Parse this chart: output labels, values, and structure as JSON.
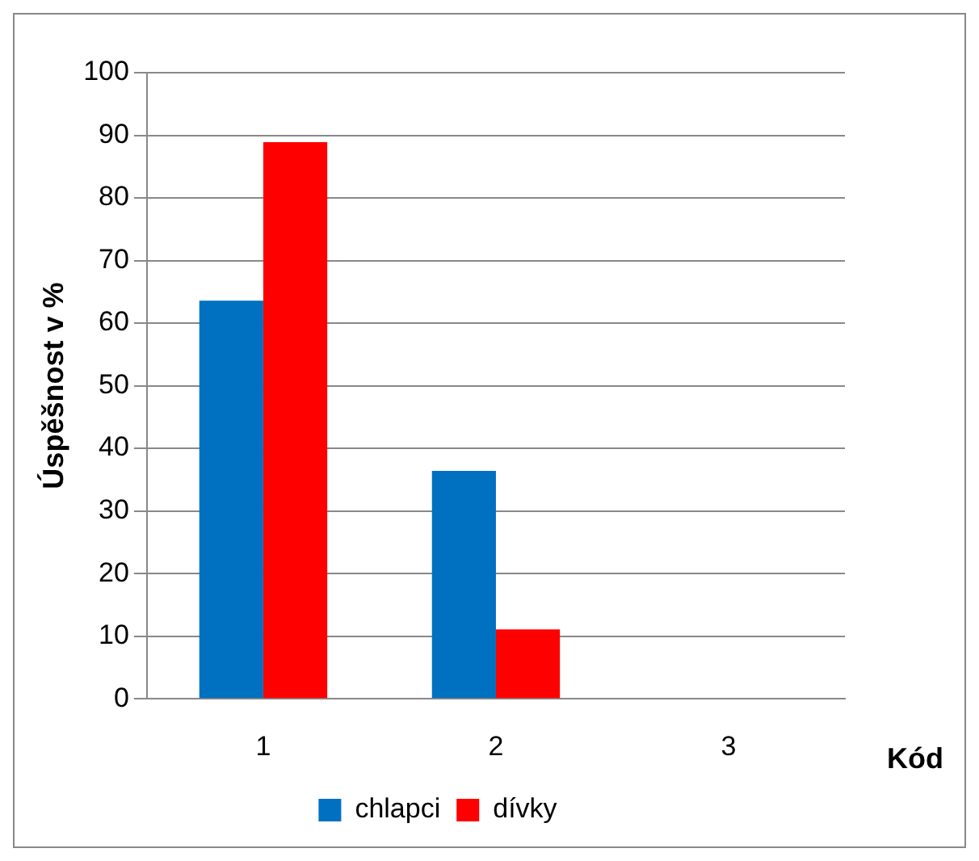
{
  "chart_data": {
    "type": "bar",
    "categories": [
      "1",
      "2",
      "3"
    ],
    "series": [
      {
        "name": "chlapci",
        "color": "#0070c0",
        "values": [
          63.6,
          36.4,
          0
        ]
      },
      {
        "name": "dívky",
        "color": "#ff0000",
        "values": [
          88.9,
          11.1,
          0
        ]
      }
    ],
    "ylabel": "Úspěšnost v %",
    "xlabel": "Kód",
    "ylim": [
      0,
      100
    ],
    "yticks": [
      0,
      10,
      20,
      30,
      40,
      50,
      60,
      70,
      80,
      90,
      100
    ],
    "grid": "y",
    "legend": "bottom"
  }
}
